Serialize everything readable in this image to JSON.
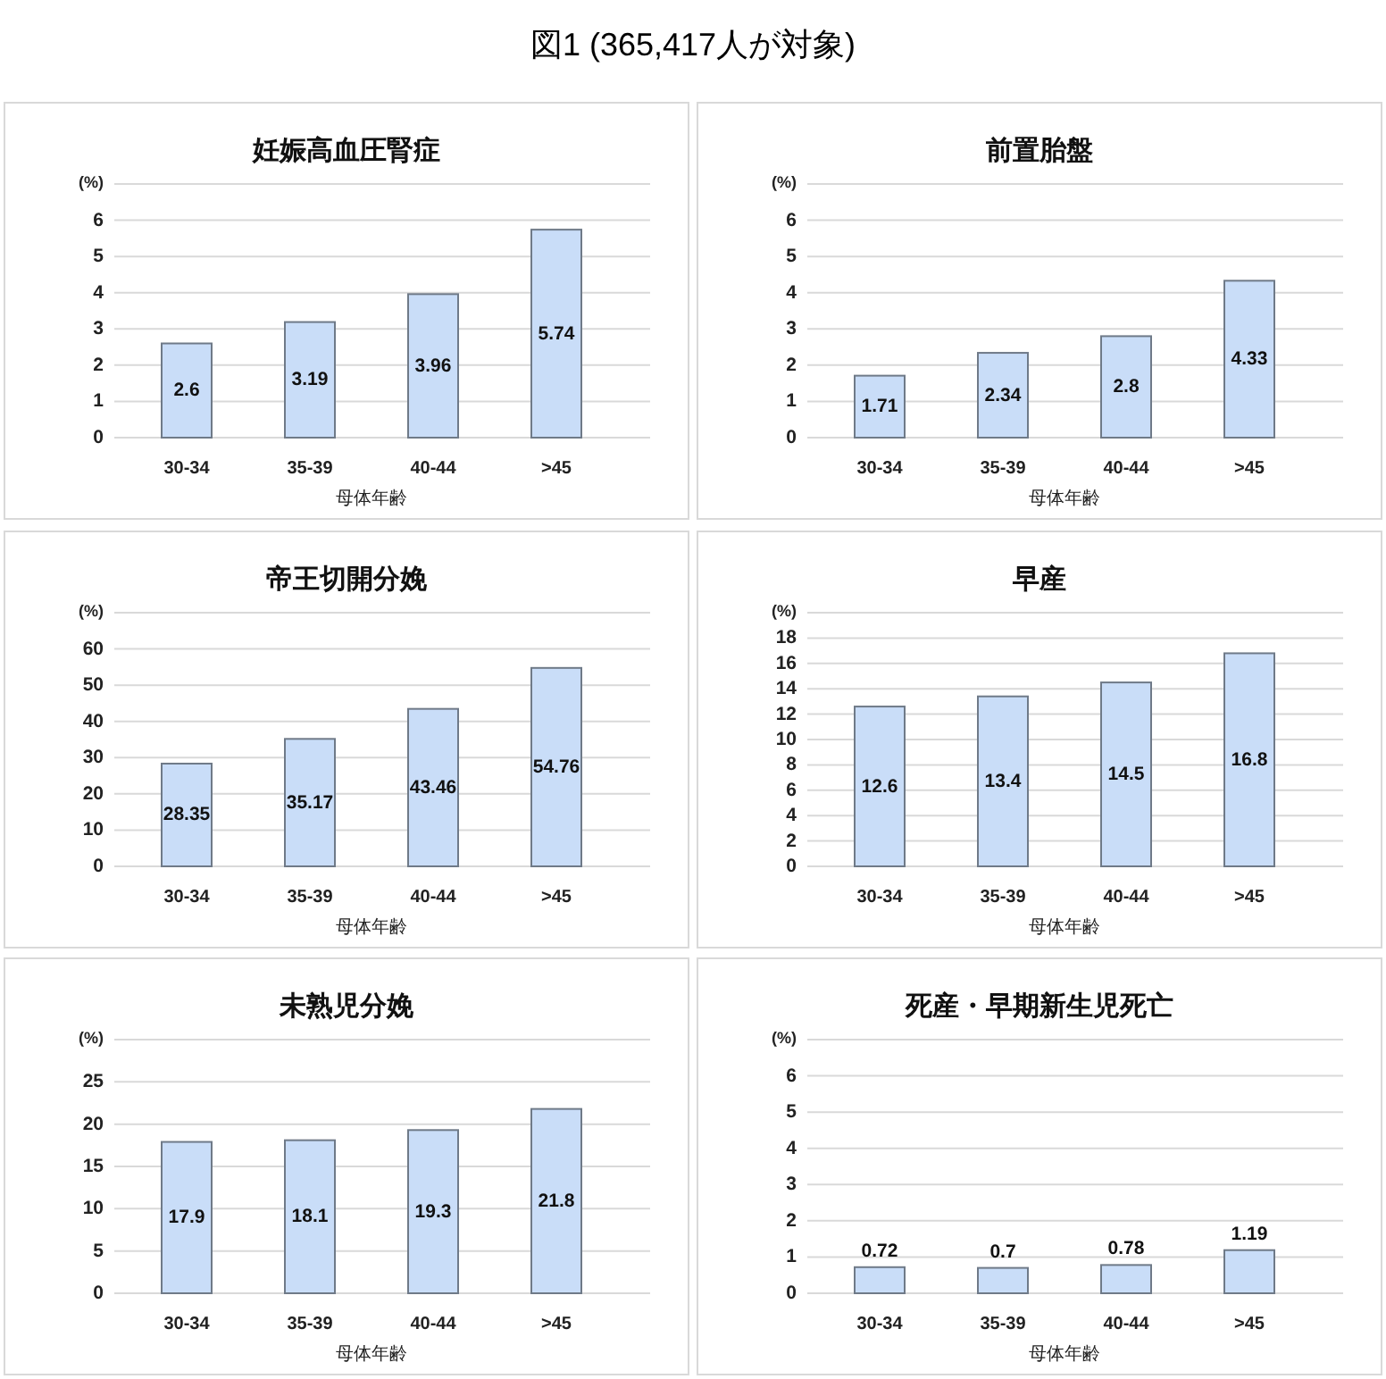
{
  "chart_data": [
    {
      "type": "bar",
      "title": "妊娠高血圧腎症",
      "xlabel": "母体年齢",
      "ylabel": "(%)",
      "categories": [
        "30-34",
        "35-39",
        "40-44",
        ">45"
      ],
      "values": [
        2.6,
        3.19,
        3.96,
        5.74
      ],
      "color": "#c9ddf8",
      "ylim": [
        0,
        7
      ],
      "yticks": [
        0,
        1,
        2,
        3,
        4,
        5,
        6,
        {
          "value": 7,
          "label": null
        }
      ],
      "grid": "y",
      "data_labels": true,
      "annotations": [
        "図1 (365,417人が対象)"
      ]
    },
    {
      "type": "bar",
      "title": "前置胎盤",
      "xlabel": "母体年齢",
      "ylabel": "(%)",
      "categories": [
        "30-34",
        "35-39",
        "40-44",
        ">45"
      ],
      "values": [
        1.71,
        2.34,
        2.8,
        4.33
      ],
      "color": "#c9ddf8",
      "ylim": [
        0,
        7
      ],
      "yticks": [
        0,
        1,
        2,
        3,
        4,
        5,
        6,
        {
          "value": 7,
          "label": null
        }
      ],
      "grid": "y",
      "data_labels": true
    },
    {
      "type": "bar",
      "title": "帝王切開分娩",
      "xlabel": "母体年齢",
      "ylabel": "(%)",
      "categories": [
        "30-34",
        "35-39",
        "40-44",
        ">45"
      ],
      "values": [
        28.35,
        35.17,
        43.46,
        54.76
      ],
      "color": "#c9ddf8",
      "ylim": [
        0,
        70
      ],
      "yticks": [
        0,
        10,
        20,
        30,
        40,
        50,
        60,
        {
          "value": 70,
          "label": null
        }
      ],
      "grid": "y",
      "data_labels": true
    },
    {
      "type": "bar",
      "title": "早産",
      "xlabel": "母体年齢",
      "ylabel": "(%)",
      "categories": [
        "30-34",
        "35-39",
        "40-44",
        ">45"
      ],
      "values": [
        12.6,
        13.4,
        14.5,
        16.8
      ],
      "color": "#c9ddf8",
      "ylim": [
        0,
        20
      ],
      "yticks": [
        0,
        2,
        4,
        6,
        8,
        10,
        12,
        14,
        16,
        18,
        {
          "value": 20,
          "label": null
        }
      ],
      "grid": "y",
      "data_labels": true
    },
    {
      "type": "bar",
      "title": "未熟児分娩",
      "xlabel": "母体年齢",
      "ylabel": "(%)",
      "categories": [
        "30-34",
        "35-39",
        "40-44",
        ">45"
      ],
      "values": [
        17.9,
        18.1,
        19.3,
        21.8
      ],
      "color": "#c9ddf8",
      "ylim": [
        0,
        30
      ],
      "yticks": [
        0,
        5,
        10,
        15,
        20,
        25,
        {
          "value": 30,
          "label": null
        }
      ],
      "grid": "y",
      "data_labels": true
    },
    {
      "type": "bar",
      "title": "死産・早期新生児死亡",
      "xlabel": "母体年齢",
      "ylabel": "(%)",
      "categories": [
        "30-34",
        "35-39",
        "40-44",
        ">45"
      ],
      "values": [
        0.72,
        0.7,
        0.78,
        1.19
      ],
      "color": "#c9ddf8",
      "ylim": [
        0,
        7
      ],
      "yticks": [
        0,
        1,
        2,
        3,
        4,
        5,
        6,
        {
          "value": 7,
          "label": null
        }
      ],
      "grid": "y",
      "data_labels": true
    }
  ]
}
